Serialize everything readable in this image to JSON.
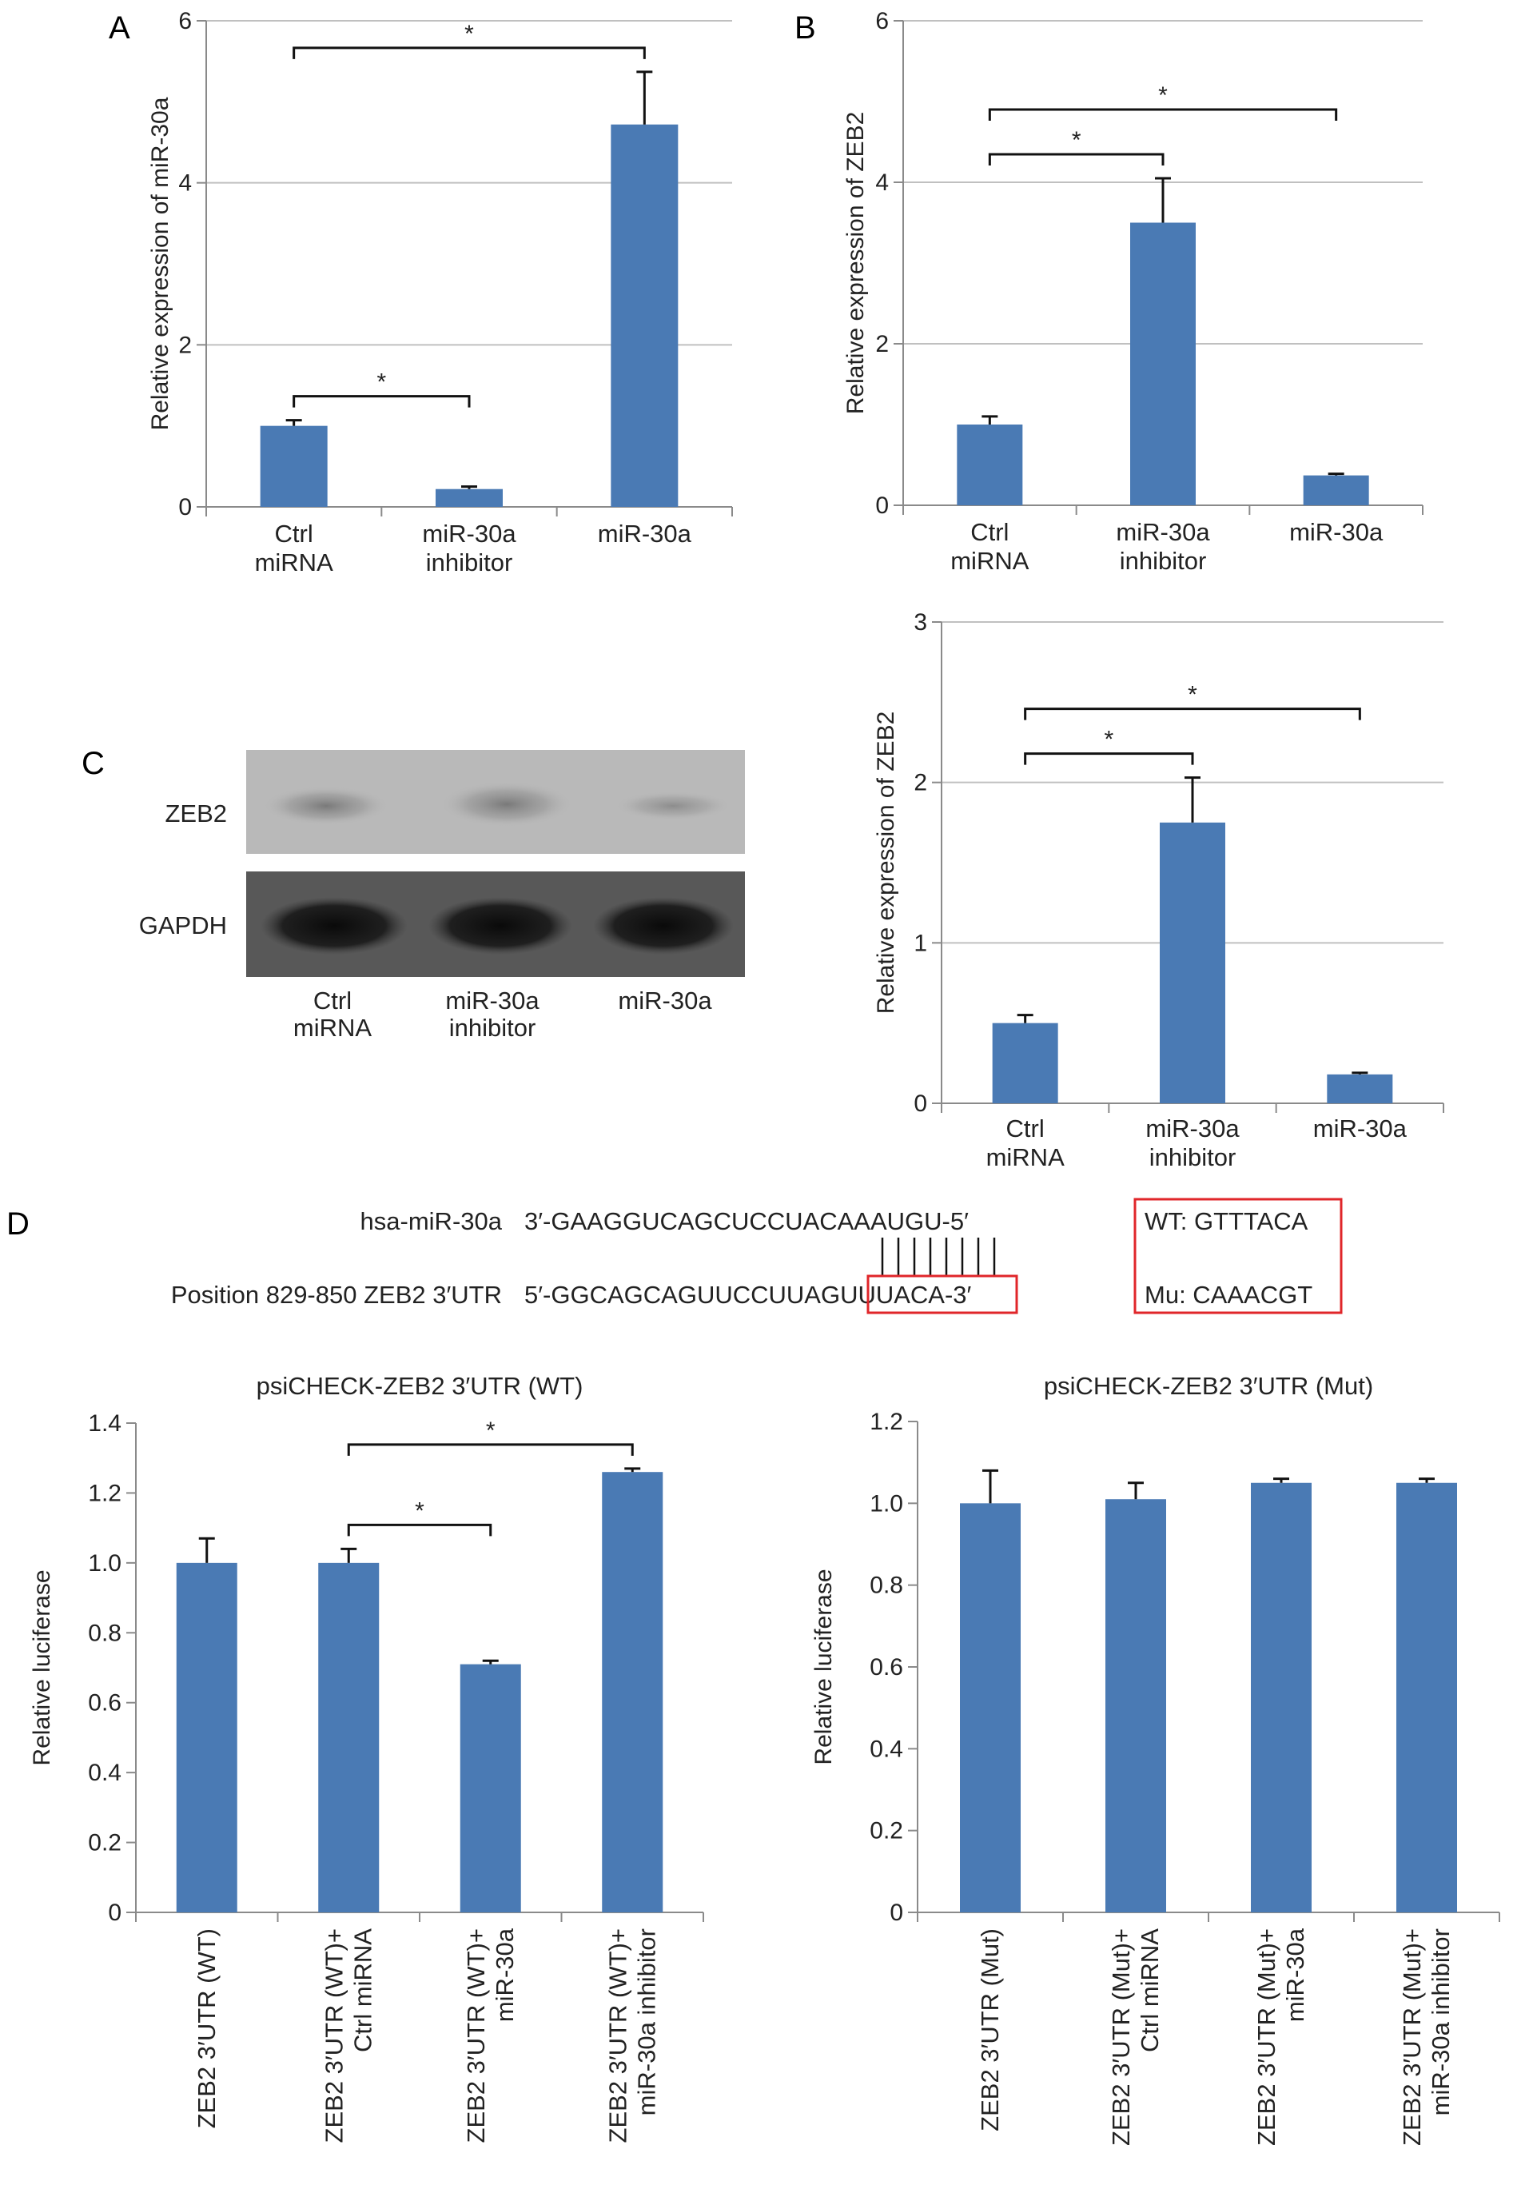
{
  "colors": {
    "bar": "#4a7ab4",
    "grid": "#c0c0c0",
    "axis": "#8a8a8a",
    "box": "#e0262a"
  },
  "panels": {
    "a": "A",
    "b": "B",
    "c": "C",
    "d": "D"
  },
  "chart_data": [
    {
      "id": "A",
      "type": "bar",
      "categories": [
        "Ctrl miRNA",
        "miR-30a inhibitor",
        "miR-30a"
      ],
      "category_lines": [
        [
          "Ctrl",
          "miRNA"
        ],
        [
          "miR-30a",
          "inhibitor"
        ],
        [
          "miR-30a"
        ]
      ],
      "values": [
        1.0,
        0.22,
        4.72
      ],
      "errors": [
        0.07,
        0.03,
        0.65
      ],
      "ylabel": "Relative expression of miR-30a",
      "title": "",
      "ylim": [
        0,
        6
      ],
      "yticks": [
        "0",
        "2",
        "4",
        "6"
      ],
      "grid": true,
      "significance": [
        {
          "from": 0,
          "to": 1,
          "label": "*"
        },
        {
          "from": 0,
          "to": 2,
          "label": "*"
        }
      ]
    },
    {
      "id": "B",
      "type": "bar",
      "categories": [
        "Ctrl miRNA",
        "miR-30a inhibitor",
        "miR-30a"
      ],
      "category_lines": [
        [
          "Ctrl",
          "miRNA"
        ],
        [
          "miR-30a",
          "inhibitor"
        ],
        [
          "miR-30a"
        ]
      ],
      "values": [
        1.0,
        3.5,
        0.37
      ],
      "errors": [
        0.1,
        0.55,
        0.02
      ],
      "ylabel": "Relative expression of ZEB2",
      "title": "",
      "ylim": [
        0,
        6
      ],
      "yticks": [
        "0",
        "2",
        "4",
        "6"
      ],
      "grid": true,
      "significance": [
        {
          "from": 0,
          "to": 1,
          "label": "*"
        },
        {
          "from": 0,
          "to": 2,
          "label": "*"
        }
      ]
    },
    {
      "id": "C",
      "type": "bar",
      "categories": [
        "Ctrl miRNA",
        "miR-30a inhibitor",
        "miR-30a"
      ],
      "category_lines": [
        [
          "Ctrl",
          "miRNA"
        ],
        [
          "miR-30a",
          "inhibitor"
        ],
        [
          "miR-30a"
        ]
      ],
      "values": [
        0.5,
        1.75,
        0.18
      ],
      "errors": [
        0.05,
        0.28,
        0.01
      ],
      "ylabel": "Relative expression of ZEB2",
      "title": "",
      "ylim": [
        0,
        3
      ],
      "yticks": [
        "0",
        "1",
        "2",
        "3"
      ],
      "grid": true,
      "significance": [
        {
          "from": 0,
          "to": 1,
          "label": "*"
        },
        {
          "from": 0,
          "to": 2,
          "label": "*"
        }
      ]
    },
    {
      "id": "D-WT",
      "type": "bar",
      "categories": [
        "ZEB2 3′UTR (WT)",
        "ZEB2 3′UTR (WT)+ Ctrl miRNA",
        "ZEB2 3′UTR (WT)+ miR-30a",
        "ZEB2 3′UTR (WT)+ miR-30a inhibitor"
      ],
      "category_lines": [
        [
          "ZEB2 3′UTR (WT)"
        ],
        [
          "ZEB2 3′UTR (WT)+",
          "Ctrl miRNA"
        ],
        [
          "ZEB2 3′UTR (WT)+",
          "miR-30a"
        ],
        [
          "ZEB2 3′UTR (WT)+",
          "miR-30a inhibitor"
        ]
      ],
      "values": [
        1.0,
        1.0,
        0.71,
        1.26
      ],
      "errors": [
        0.07,
        0.04,
        0.01,
        0.01
      ],
      "ylabel": "Relative luciferase",
      "title": "psiCHECK-ZEB2 3′UTR (WT)",
      "ylim": [
        0,
        1.4
      ],
      "yticks": [
        "0",
        "0.2",
        "0.4",
        "0.6",
        "0.8",
        "1.0",
        "1.2",
        "1.4"
      ],
      "grid": false,
      "significance": [
        {
          "from": 1,
          "to": 2,
          "label": "*"
        },
        {
          "from": 1,
          "to": 3,
          "label": "*"
        }
      ]
    },
    {
      "id": "D-Mut",
      "type": "bar",
      "categories": [
        "ZEB2 3′UTR (Mut)",
        "ZEB2 3′UTR (Mut)+ Ctrl miRNA",
        "ZEB2 3′UTR (Mut)+ miR-30a",
        "ZEB2 3′UTR (Mut)+ miR-30a inhibitor"
      ],
      "category_lines": [
        [
          "ZEB2 3′UTR (Mut)"
        ],
        [
          "ZEB2 3′UTR (Mut)+",
          "Ctrl miRNA"
        ],
        [
          "ZEB2 3′UTR (Mut)+",
          "miR-30a"
        ],
        [
          "ZEB2 3′UTR (Mut)+",
          "miR-30a inhibitor"
        ]
      ],
      "values": [
        1.0,
        1.01,
        1.05,
        1.05
      ],
      "errors": [
        0.08,
        0.04,
        0.01,
        0.01
      ],
      "ylabel": "Relative luciferase",
      "title": "psiCHECK-ZEB2 3′UTR (Mut)",
      "ylim": [
        0,
        1.2
      ],
      "yticks": [
        "0",
        "0.2",
        "0.4",
        "0.6",
        "0.8",
        "1.0",
        "1.2"
      ],
      "grid": false,
      "significance": []
    }
  ],
  "blot": {
    "rows": [
      "ZEB2",
      "GAPDH"
    ],
    "lanes": [
      [
        "Ctrl",
        "miRNA"
      ],
      [
        "miR-30a",
        "inhibitor"
      ],
      [
        "miR-30a"
      ]
    ]
  },
  "sequence": {
    "mir_label": "hsa-miR-30a",
    "mir_seq": "3′-GAAGGUCAGCUCCUACAAAUGU-5′",
    "utr_label": "Position 829-850 ZEB2 3′UTR",
    "utr_prefix": "5′-GGCAGCAGUUCCUUA",
    "utr_site": "GUUUACA",
    "utr_suffix": "-3′",
    "wt": "WT: GTTTACA",
    "mu": "Mu: CAAACGT"
  }
}
